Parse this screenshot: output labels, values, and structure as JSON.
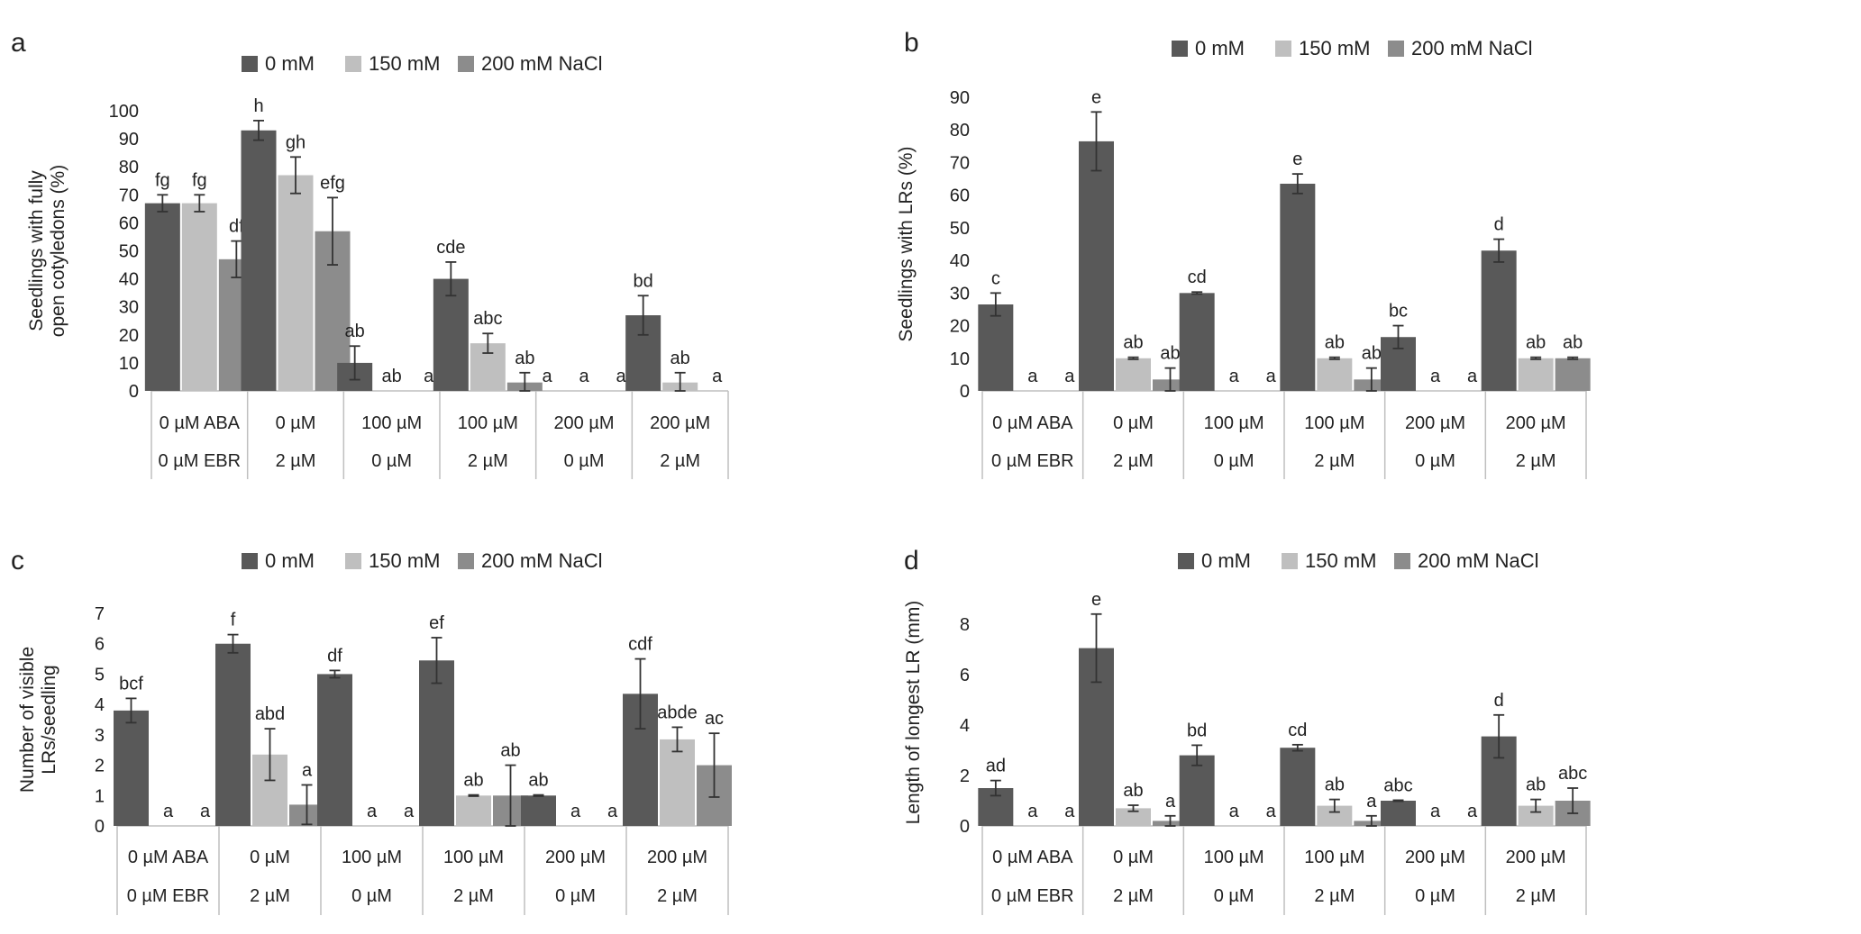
{
  "colors": {
    "s0": "#595959",
    "s1": "#bfbfbf",
    "s2": "#8c8c8c",
    "axis": "#bfbfbf",
    "text": "#222222"
  },
  "legend": [
    "0 mM",
    "150 mM",
    "200 mM NaCl"
  ],
  "chart_data": [
    {
      "type": "bar",
      "panel": "a",
      "ylabel": "Seedlings with fully open cotyledons (%)",
      "ylim": [
        0,
        100
      ],
      "yticks": [
        0,
        10,
        20,
        30,
        40,
        50,
        60,
        70,
        80,
        90,
        100
      ],
      "categories": [
        "0 µM ABA",
        "0 µM",
        "100 µM",
        "100 µM",
        "200 µM",
        "200 µM"
      ],
      "categories2": [
        "0 µM EBR",
        "2 µM",
        "0 µM",
        "2 µM",
        "0 µM",
        "2 µM"
      ],
      "series": [
        {
          "name": "0 mM",
          "values": [
            67,
            93,
            10,
            40,
            0,
            27
          ],
          "errors": [
            3,
            3.5,
            6,
            6,
            0,
            7
          ],
          "letters": [
            "fg",
            "h",
            "ab",
            "cde",
            "a",
            "bd"
          ]
        },
        {
          "name": "150 mM",
          "values": [
            67,
            77,
            0,
            17,
            0,
            3
          ],
          "errors": [
            3,
            6.5,
            0,
            3.5,
            0,
            3.5
          ],
          "letters": [
            "fg",
            "gh",
            "ab",
            "abc",
            "a",
            "ab"
          ]
        },
        {
          "name": "200 mM NaCl",
          "values": [
            47,
            57,
            0,
            3,
            0,
            0
          ],
          "errors": [
            6.5,
            12,
            0,
            3.5,
            0,
            0
          ],
          "letters": [
            "df",
            "efg",
            "a",
            "ab",
            "a",
            "a"
          ]
        }
      ]
    },
    {
      "type": "bar",
      "panel": "b",
      "ylabel": "Seedlings with LRs (%)",
      "ylim": [
        0,
        90
      ],
      "yticks": [
        0,
        10,
        20,
        30,
        40,
        50,
        60,
        70,
        80,
        90
      ],
      "categories": [
        "0 µM ABA",
        "0 µM",
        "100 µM",
        "100 µM",
        "200 µM",
        "200 µM"
      ],
      "categories2": [
        "0 µM EBR",
        "2 µM",
        "0 µM",
        "2 µM",
        "0 µM",
        "2 µM"
      ],
      "series": [
        {
          "name": "0 mM",
          "values": [
            26.5,
            76.5,
            30,
            63.5,
            16.5,
            43
          ],
          "errors": [
            3.5,
            9,
            0.3,
            3,
            3.5,
            3.5
          ],
          "letters": [
            "c",
            "e",
            "cd",
            "e",
            "bc",
            "d"
          ]
        },
        {
          "name": "150 mM",
          "values": [
            0,
            10,
            0,
            10,
            0,
            10
          ],
          "errors": [
            0,
            0.3,
            0,
            0.3,
            0,
            0.3
          ],
          "letters": [
            "a",
            "ab",
            "a",
            "ab",
            "a",
            "ab"
          ]
        },
        {
          "name": "200 mM NaCl",
          "values": [
            0,
            3.5,
            0,
            3.5,
            0,
            10
          ],
          "errors": [
            0,
            3.5,
            0,
            3.5,
            0,
            0.3
          ],
          "letters": [
            "a",
            "ab",
            "a",
            "ab",
            "a",
            "ab"
          ]
        }
      ]
    },
    {
      "type": "bar",
      "panel": "c",
      "ylabel": "Number of visible LRs/seedling",
      "ylim": [
        0,
        7
      ],
      "yticks": [
        0,
        1,
        2,
        3,
        4,
        5,
        6,
        7
      ],
      "categories": [
        "0 µM ABA",
        "0 µM",
        "100 µM",
        "100 µM",
        "200 µM",
        "200 µM"
      ],
      "categories2": [
        "0 µM EBR",
        "2 µM",
        "0 µM",
        "2 µM",
        "0 µM",
        "2 µM"
      ],
      "series": [
        {
          "name": "0 mM",
          "values": [
            3.8,
            6,
            5,
            5.45,
            1,
            4.35
          ],
          "errors": [
            0.4,
            0.3,
            0.12,
            0.75,
            0.02,
            1.15
          ],
          "letters": [
            "bcf",
            "f",
            "df",
            "ef",
            "ab",
            "cdf"
          ]
        },
        {
          "name": "150 mM",
          "values": [
            0,
            2.35,
            0,
            1,
            0,
            2.85
          ],
          "errors": [
            0,
            0.85,
            0,
            0.02,
            0,
            0.4
          ],
          "letters": [
            "a",
            "abd",
            "a",
            "ab",
            "a",
            "abde"
          ]
        },
        {
          "name": "200 mM NaCl",
          "values": [
            0,
            0.7,
            0,
            1,
            0,
            2
          ],
          "errors": [
            0,
            0.65,
            0,
            1,
            0,
            1.05
          ],
          "letters": [
            "a",
            "a",
            "a",
            "ab",
            "a",
            "ac"
          ]
        }
      ]
    },
    {
      "type": "bar",
      "panel": "d",
      "ylabel": "Length of longest LR (mm)",
      "ylim": [
        0,
        9
      ],
      "yticks": [
        0,
        2,
        4,
        6,
        8
      ],
      "categories": [
        "0 µM ABA",
        "0 µM",
        "100 µM",
        "100 µM",
        "200 µM",
        "200 µM"
      ],
      "categories2": [
        "0 µM EBR",
        "2 µM",
        "0 µM",
        "2 µM",
        "0 µM",
        "2 µM"
      ],
      "series": [
        {
          "name": "0 mM",
          "values": [
            1.5,
            7.05,
            2.8,
            3.1,
            1,
            3.55
          ],
          "errors": [
            0.3,
            1.35,
            0.4,
            0.12,
            0.02,
            0.85
          ],
          "letters": [
            "ad",
            "e",
            "bd",
            "cd",
            "abc",
            "d"
          ]
        },
        {
          "name": "150 mM",
          "values": [
            0,
            0.7,
            0,
            0.8,
            0,
            0.8
          ],
          "errors": [
            0,
            0.12,
            0,
            0.25,
            0,
            0.25
          ],
          "letters": [
            "a",
            "ab",
            "a",
            "ab",
            "a",
            "ab"
          ]
        },
        {
          "name": "200 mM NaCl",
          "values": [
            0,
            0.2,
            0,
            0.2,
            0,
            1
          ],
          "errors": [
            0,
            0.2,
            0,
            0.2,
            0,
            0.5
          ],
          "letters": [
            "a",
            "a",
            "a",
            "a",
            "a",
            "abc"
          ]
        }
      ]
    }
  ]
}
